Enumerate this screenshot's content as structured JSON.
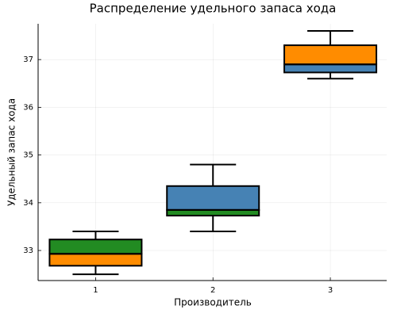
{
  "chart_data": {
    "type": "box",
    "title": "Распределение удельного запаса хода",
    "xlabel": "Производитель",
    "ylabel": "Удельный запас хода",
    "xlim": [
      0.51,
      3.48
    ],
    "xticks": [
      1,
      2,
      3
    ],
    "ylim": [
      32.37,
      37.75
    ],
    "yticks": [
      33,
      34,
      35,
      36,
      37
    ],
    "grid": true,
    "boxes": [
      {
        "x": 1,
        "whisker_low": 32.5,
        "q1": 32.68,
        "median": 32.93,
        "q3": 33.23,
        "whisker_high": 33.4,
        "lower_color": "#ff8c00",
        "upper_color": "#228b22"
      },
      {
        "x": 2,
        "whisker_low": 33.4,
        "q1": 33.73,
        "median": 33.85,
        "q3": 34.35,
        "whisker_high": 34.8,
        "lower_color": "#228b22",
        "upper_color": "#4682b4"
      },
      {
        "x": 3,
        "whisker_low": 36.6,
        "q1": 36.73,
        "median": 36.9,
        "q3": 37.3,
        "whisker_high": 37.6,
        "lower_color": "#4682b4",
        "upper_color": "#ff8c00"
      }
    ]
  }
}
